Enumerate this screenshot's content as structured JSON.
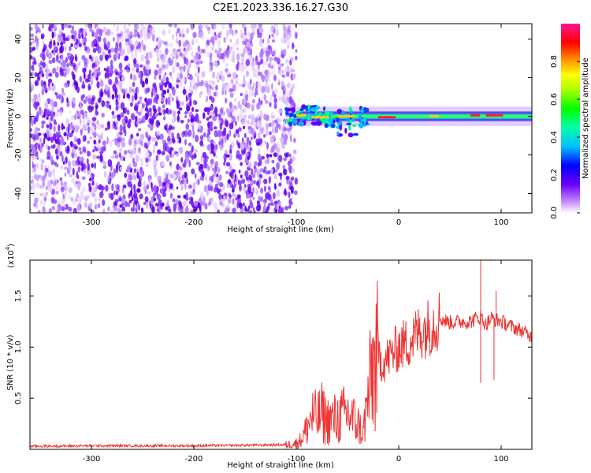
{
  "title": "C2E1.2023.336.16.27.G30",
  "chart_data": [
    {
      "type": "heatmap",
      "xlabel": "Height of straight line (km)",
      "ylabel": "Frequency (Hz)",
      "xlim": [
        -360,
        130
      ],
      "ylim": [
        -50,
        48
      ],
      "x_ticks": [
        -300,
        -200,
        -100,
        0,
        100
      ],
      "y_ticks": [
        -40,
        -20,
        0,
        20,
        40
      ],
      "colorbar": {
        "label": "Normalized spectral amplitude",
        "range": [
          0,
          1
        ],
        "ticks": [
          0.0,
          0.2,
          0.4,
          0.6,
          0.8
        ],
        "colors": [
          "#ffffff",
          "#8a2be2",
          "#0000ff",
          "#00bfff",
          "#00ff00",
          "#ffff00",
          "#ff0000",
          "#ff1493"
        ]
      },
      "regions": [
        {
          "x_range": [
            -360,
            -100
          ],
          "frequency_range": [
            -50,
            48
          ],
          "description_level": "broadband purple speckle, amplitude ~0.05-0.15"
        },
        {
          "x_range": [
            -110,
            130
          ],
          "frequency_range": [
            -4,
            4
          ],
          "description_level": "narrow band near 0 Hz, amplitude ~0.4-0.9"
        }
      ]
    },
    {
      "type": "line",
      "xlabel": "Height of straight line (km)",
      "ylabel": "SNR (10 * v/v)",
      "y_multiplier_label": "(x10",
      "y_multiplier_exp": "4",
      "y_multiplier_close": ")",
      "xlim": [
        -360,
        130
      ],
      "ylim": [
        0,
        18500
      ],
      "x_ticks": [
        -300,
        -200,
        -100,
        0,
        100
      ],
      "y_ticks": [
        5000,
        10000,
        15000
      ],
      "y_tick_labels": [
        "0.5",
        "1.0",
        "1.5"
      ],
      "line_color": "#ee3333",
      "series": [
        {
          "x": [
            -360,
            -300,
            -200,
            -150,
            -110,
            -100,
            -95,
            -90,
            -85,
            -80,
            -75,
            -70,
            -60,
            -50,
            -40,
            -35,
            -30,
            -25,
            -20,
            -15,
            -10,
            -5,
            0,
            10,
            20,
            30,
            40,
            50,
            60,
            70,
            80,
            85,
            90,
            100,
            110,
            120,
            130
          ],
          "y": [
            300,
            350,
            350,
            400,
            450,
            600,
            1000,
            2000,
            3300,
            3000,
            3500,
            2800,
            3000,
            3500,
            2500,
            1500,
            5000,
            8000,
            9000,
            8500,
            9000,
            9500,
            10000,
            10500,
            11500,
            12000,
            12800,
            12400,
            12500,
            12500,
            13000,
            12200,
            12800,
            12500,
            12000,
            11600,
            11000
          ]
        }
      ],
      "spikes": [
        {
          "x": 80,
          "y": 19000
        },
        {
          "x": 80,
          "y": 6500
        },
        {
          "x": 93,
          "y": 6800
        },
        {
          "x": 95,
          "y": 15500
        }
      ]
    }
  ]
}
